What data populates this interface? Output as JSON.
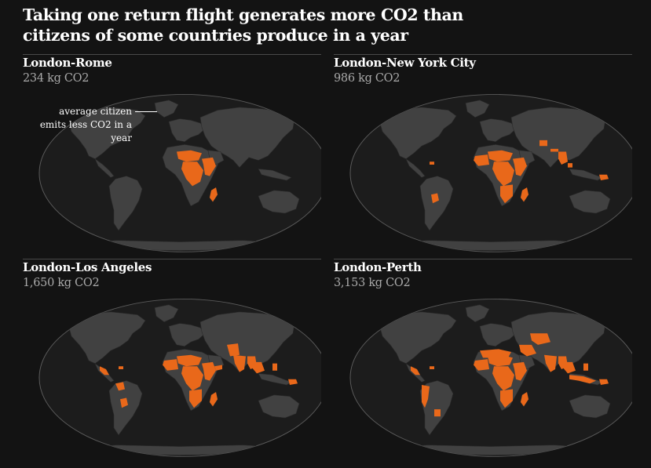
{
  "headline": "Taking one return flight generates more CO2 than citizens of some countries produce in a year",
  "annotation": "average citizen emits less CO2 in a year",
  "colors": {
    "background": "#131313",
    "ocean": "#1c1c1c",
    "ocean_border": "#5a5a5a",
    "land": "#414141",
    "highlight": "#e9681a"
  },
  "legend": {
    "highlight_meaning": "average citizen emits less CO2 in a year"
  },
  "panels": [
    {
      "title": "London-Rome",
      "value": "234 kg CO2",
      "highlighted_regions": [
        "sahel-africa",
        "central-africa",
        "east-africa",
        "madagascar"
      ]
    },
    {
      "title": "London-New York City",
      "value": "986 kg CO2",
      "highlighted_regions": [
        "west-africa",
        "sahel-africa",
        "central-africa",
        "east-africa",
        "southern-africa",
        "madagascar",
        "haiti",
        "bolivia",
        "afghanistan",
        "nepal",
        "bangladesh-myanmar",
        "cambodia",
        "papua-new-guinea"
      ]
    },
    {
      "title": "London-Los Angeles",
      "value": "1,650 kg CO2",
      "highlighted_regions": [
        "central-america",
        "haiti",
        "colombia",
        "bolivia",
        "west-africa",
        "sahel-africa",
        "central-africa",
        "east-africa",
        "southern-africa",
        "madagascar",
        "yemen",
        "afghanistan-pakistan",
        "india",
        "bangladesh-myanmar",
        "southeast-asia",
        "philippines",
        "papua-new-guinea"
      ]
    },
    {
      "title": "London-Perth",
      "value": "3,153 kg CO2",
      "highlighted_regions": [
        "central-america",
        "haiti",
        "andean-south-america",
        "paraguay",
        "north-africa",
        "west-africa",
        "sahel-africa",
        "central-africa",
        "east-africa",
        "southern-africa",
        "madagascar",
        "middle-east",
        "central-asia",
        "india",
        "bangladesh-myanmar",
        "southeast-asia",
        "indonesia",
        "philippines",
        "papua-new-guinea"
      ]
    }
  ]
}
